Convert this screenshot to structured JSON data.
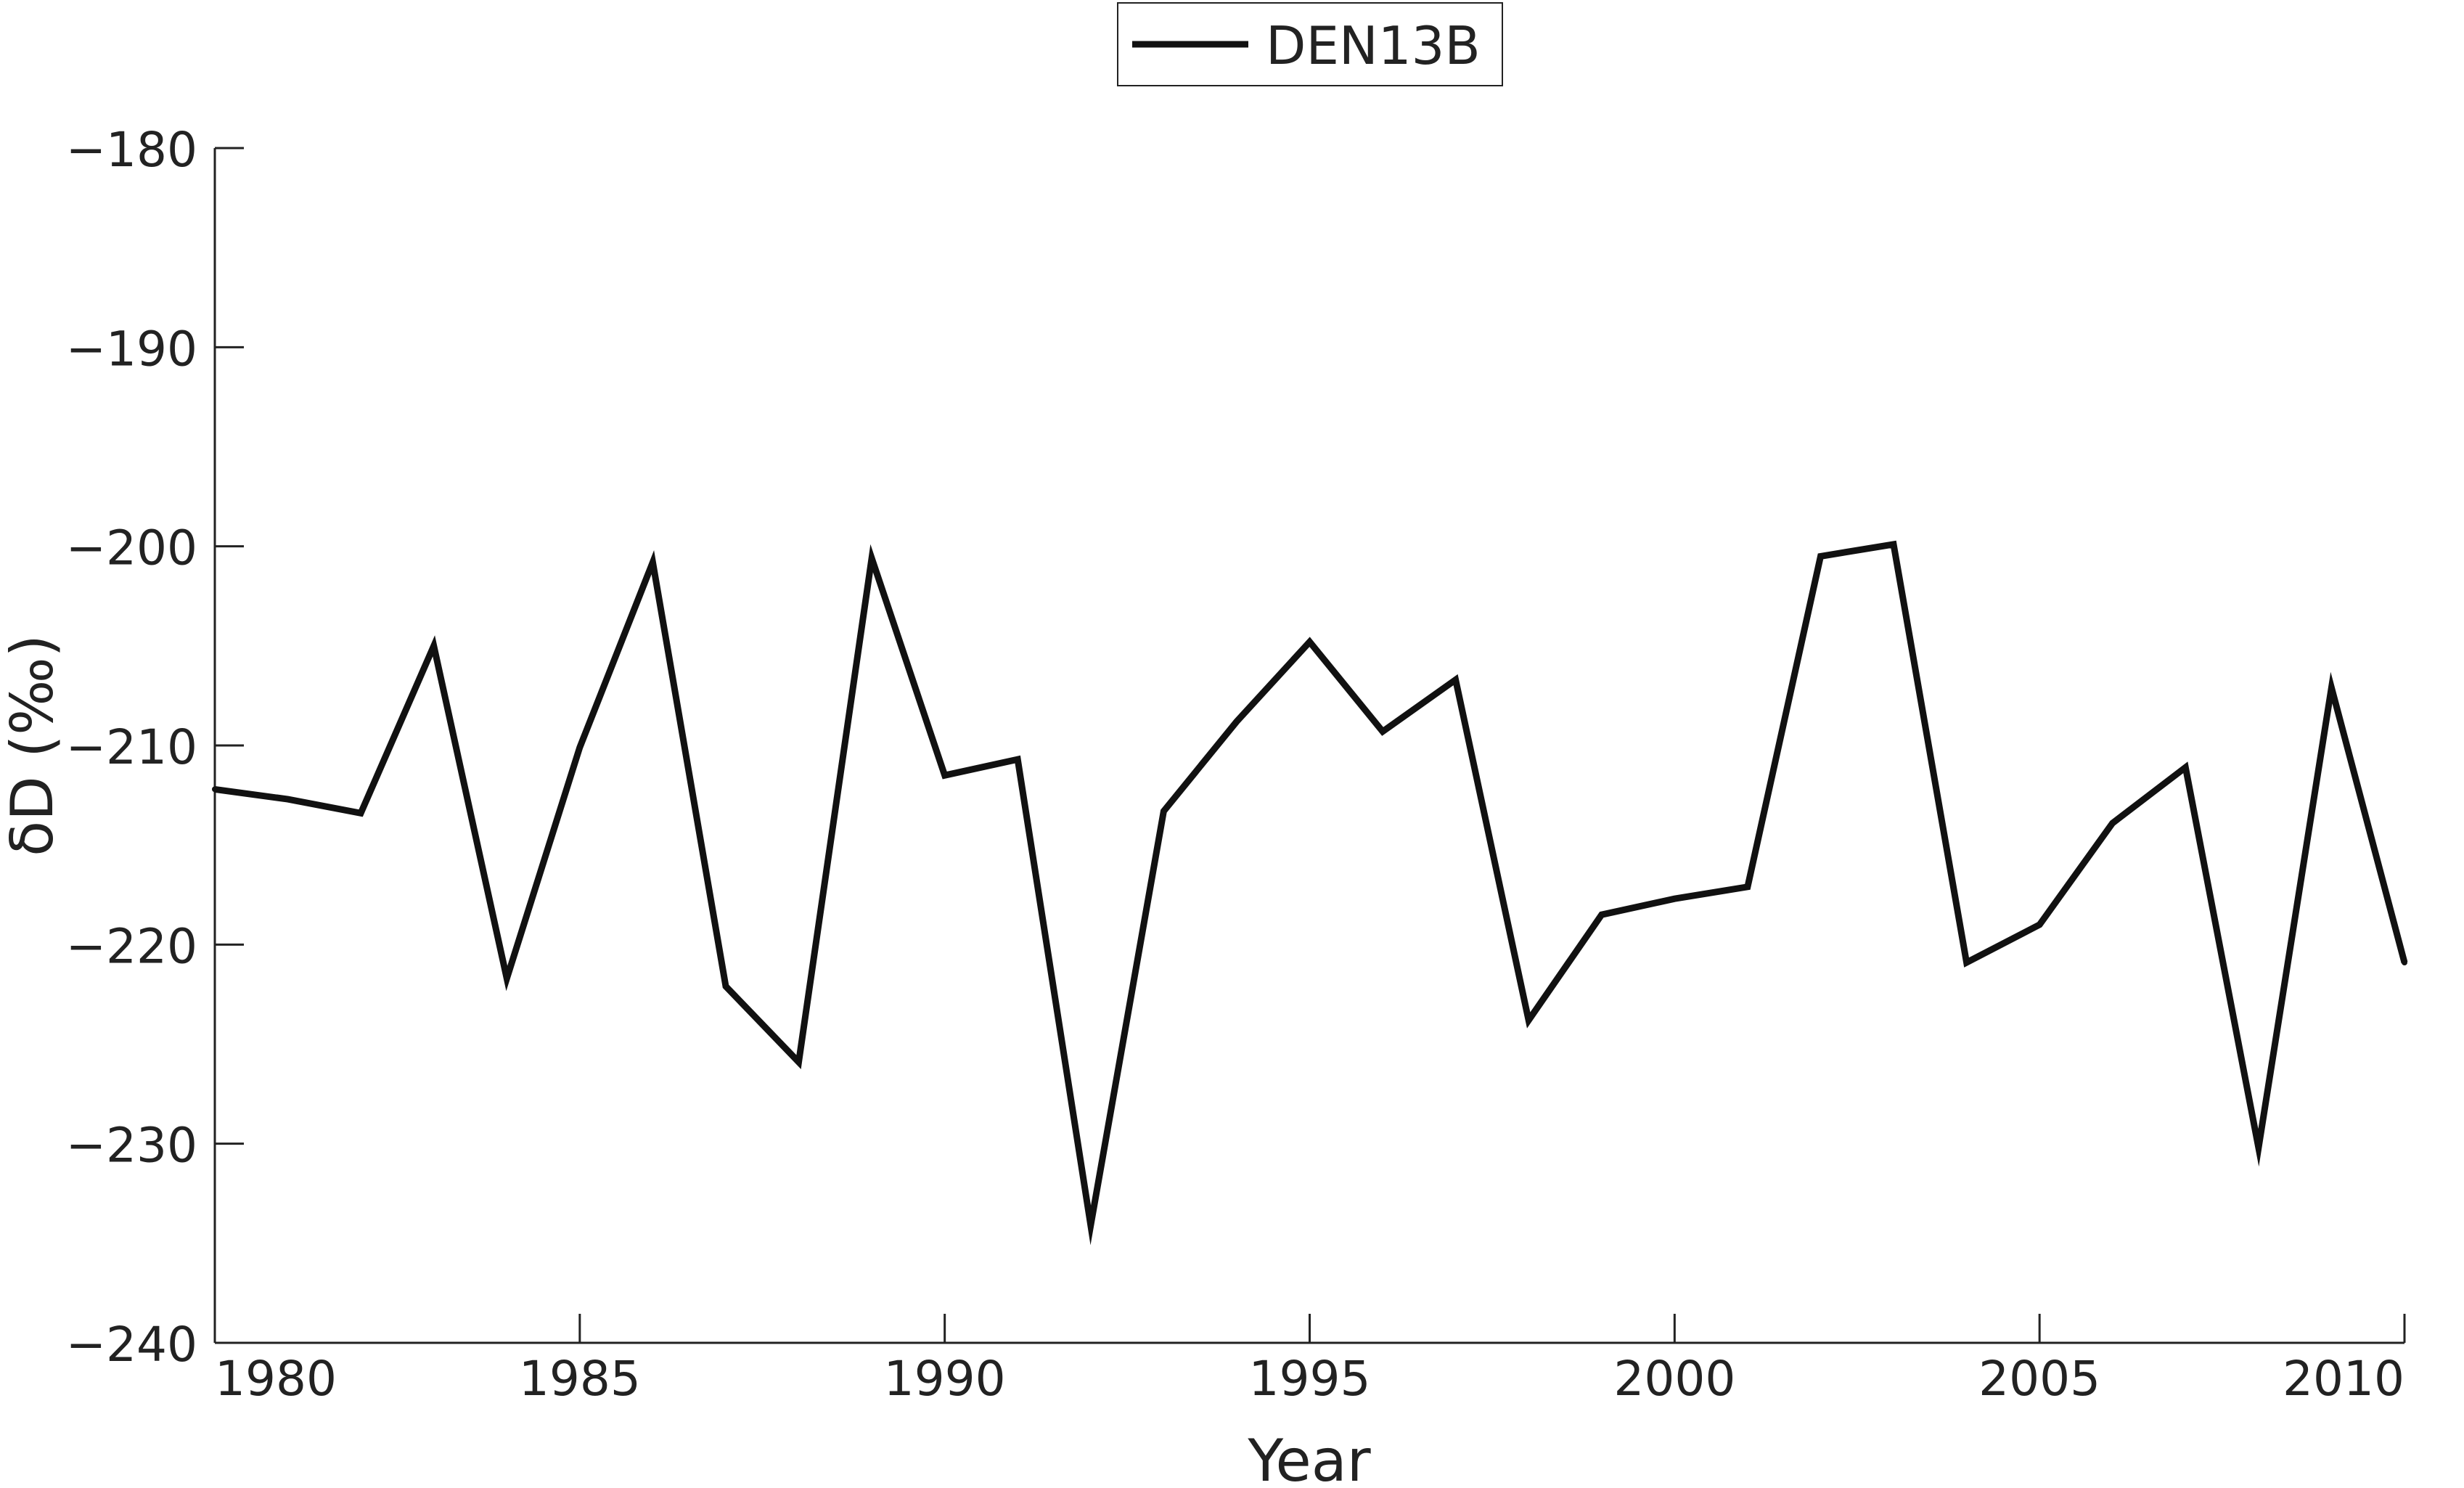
{
  "chart_data": {
    "type": "line",
    "title": "",
    "xlabel": "Year",
    "ylabel": "δD (‰)",
    "xlim": [
      1980,
      2010
    ],
    "ylim": [
      -240,
      -180
    ],
    "xticks": [
      1980,
      1985,
      1990,
      1995,
      2000,
      2005,
      2010
    ],
    "xtick_labels": [
      "1980",
      "1985",
      "1990",
      "1995",
      "2000",
      "2005",
      "2010"
    ],
    "yticks": [
      -180,
      -190,
      -200,
      -210,
      -220,
      -230,
      -240
    ],
    "ytick_labels": [
      "−180",
      "−190",
      "−200",
      "−210",
      "−220",
      "−230",
      "−240"
    ],
    "grid": false,
    "legend_position": "top-center",
    "series": [
      {
        "name": "DEN13B",
        "color": "#111111",
        "x": [
          1980,
          1981,
          1982,
          1983,
          1984,
          1985,
          1986,
          1987,
          1988,
          1989,
          1990,
          1991,
          1992,
          1993,
          1994,
          1995,
          1996,
          1997,
          1998,
          1999,
          2000,
          2001,
          2002,
          2003,
          2004,
          2005,
          2006,
          2007,
          2008,
          2009,
          2010
        ],
        "y": [
          -212.2,
          -212.7,
          -213.4,
          -205.0,
          -221.7,
          -210.1,
          -200.8,
          -222.1,
          -225.9,
          -200.6,
          -211.5,
          -210.7,
          -234.1,
          -213.3,
          -208.8,
          -204.8,
          -209.3,
          -206.7,
          -223.8,
          -218.5,
          -217.7,
          -217.1,
          -200.5,
          -199.9,
          -220.9,
          -219.0,
          -213.9,
          -211.1,
          -230.2,
          -207.1,
          -220.9
        ]
      }
    ]
  }
}
